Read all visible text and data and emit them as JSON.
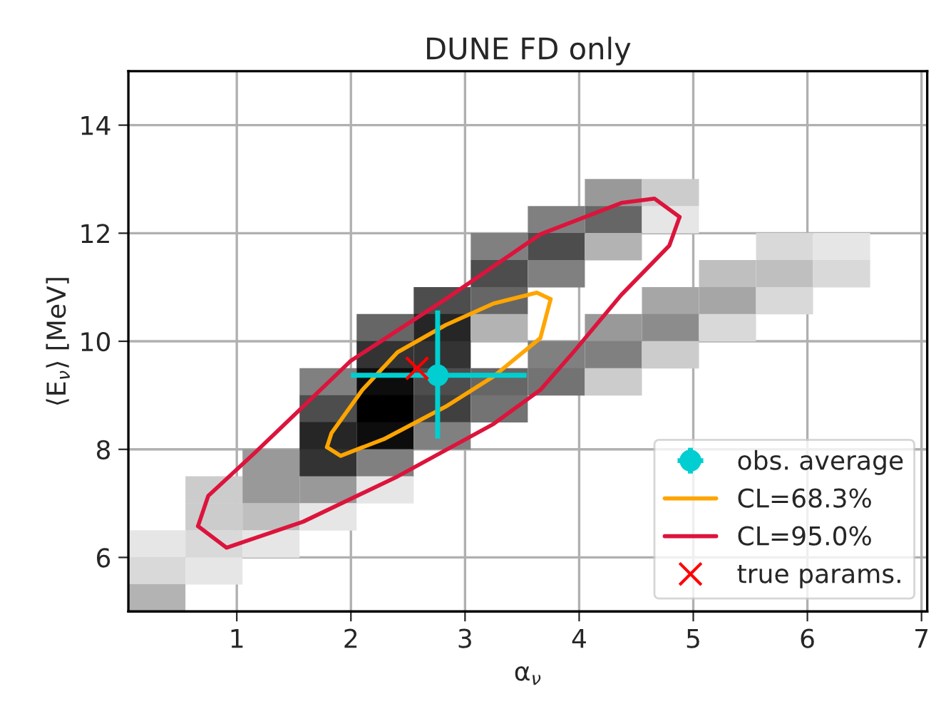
{
  "chart_data": {
    "type": "scatter",
    "title": "DUNE FD only",
    "xlabel": "α$_{ν}$",
    "ylabel": "⟨E$_{ν}$⟩ [MeV]",
    "xlim": [
      0.05,
      7.05
    ],
    "ylim": [
      5,
      15
    ],
    "xticks": [
      1,
      2,
      3,
      4,
      5,
      6,
      7
    ],
    "yticks": [
      6,
      8,
      10,
      12,
      14
    ],
    "grid": true,
    "legend": "bottom right",
    "series": [
      {
        "marker": "square",
        "x": [
          4.3,
          4.8,
          3.8,
          4.3,
          4.8,
          3.3,
          3.8,
          4.3,
          5.8,
          6.3,
          3.3,
          3.8,
          5.3,
          5.8,
          6.3,
          2.8,
          3.3,
          4.8,
          5.3,
          5.8,
          2.3,
          2.8,
          3.3,
          4.3,
          4.8,
          5.3,
          2.3,
          2.8,
          3.8,
          4.3,
          4.8,
          1.8,
          2.3,
          2.8,
          3.3,
          3.8,
          4.3,
          1.8,
          2.3,
          2.8,
          3.3,
          1.8,
          2.3,
          2.8,
          1.3,
          1.8,
          2.3,
          0.8,
          1.3,
          1.8,
          2.3,
          0.8,
          1.3,
          1.8,
          0.3,
          0.8,
          1.3,
          0.3,
          0.8,
          0.3
        ],
        "values": [
          12.75,
          12.75,
          12.25,
          12.25,
          12.25,
          11.75,
          11.75,
          11.75,
          11.75,
          11.75,
          11.25,
          11.25,
          11.25,
          11.25,
          11.25,
          10.75,
          10.75,
          10.75,
          10.75,
          10.75,
          10.25,
          10.25,
          10.25,
          10.25,
          10.25,
          10.25,
          9.75,
          9.75,
          9.75,
          9.75,
          9.75,
          9.25,
          9.25,
          9.25,
          9.25,
          9.25,
          9.25,
          8.75,
          8.75,
          8.75,
          8.75,
          8.25,
          8.25,
          8.25,
          7.75,
          7.75,
          7.75,
          7.25,
          7.25,
          7.25,
          7.25,
          6.75,
          6.75,
          6.75,
          6.25,
          6.25,
          6.25,
          5.75,
          5.75,
          5.25
        ],
        "colors": [
          "#999999",
          "#cccccc",
          "#808080",
          "#666666",
          "#e6e6e6",
          "#808080",
          "#4d4d4d",
          "#b3b3b3",
          "#d9d9d9",
          "#e6e6e6",
          "#4d4d4d",
          "#808080",
          "#bfbfbf",
          "#bfbfbf",
          "#d9d9d9",
          "#4d4d4d",
          "#666666",
          "#a6a6a6",
          "#a6a6a6",
          "#d9d9d9",
          "#666666",
          "#262626",
          "#b3b3b3",
          "#999999",
          "#8c8c8c",
          "#d9d9d9",
          "#333333",
          "#333333",
          "#808080",
          "#808080",
          "#cccccc",
          "#808080",
          "#0d0d0d",
          "#4d4d4d",
          "#666666",
          "#737373",
          "#cccccc",
          "#4d4d4d",
          "#000000",
          "#404040",
          "#737373",
          "#262626",
          "#0d0d0d",
          "#808080",
          "#999999",
          "#333333",
          "#808080",
          "#cccccc",
          "#999999",
          "#999999",
          "#e6e6e6",
          "#cccccc",
          "#bfbfbf",
          "#e6e6e6",
          "#e6e6e6",
          "#d9d9d9",
          "#e6e6e6",
          "#d9d9d9",
          "#e6e6e6",
          "#b3b3b3"
        ]
      },
      {
        "type": "scatter",
        "name": "obs. average",
        "color": "#00ced1",
        "marker": "circle",
        "x": [
          2.76
        ],
        "values": [
          9.37
        ],
        "errors": [
          [
            8.2,
            10.57
          ]
        ],
        "xerrors": [
          [
            2.0,
            3.54
          ]
        ]
      },
      {
        "type": "line",
        "name": "CL=68.3%",
        "color": "#ffa500",
        "x": [
          1.79,
          1.91,
          2.3,
          2.83,
          3.25,
          3.66,
          3.75
        ],
        "values": [
          8.04,
          7.88,
          8.2,
          8.79,
          9.35,
          10.06,
          10.78
        ]
      },
      {
        "type": "line",
        "color": "#ffa500",
        "x": [
          3.75,
          3.63,
          3.25,
          2.83,
          2.41,
          2.1,
          1.83,
          1.79
        ],
        "values": [
          10.78,
          10.9,
          10.7,
          10.3,
          9.8,
          9.1,
          8.3,
          8.04
        ]
      },
      {
        "type": "line",
        "name": "CL=95.0%",
        "color": "#dc143c",
        "x": [
          0.66,
          0.91,
          1.58,
          2.41,
          3.25,
          3.66,
          3.95,
          4.37,
          4.79,
          4.88
        ],
        "values": [
          6.58,
          6.18,
          6.66,
          7.5,
          8.47,
          9.1,
          9.8,
          10.86,
          11.77,
          12.3
        ]
      },
      {
        "type": "line",
        "color": "#dc143c",
        "x": [
          4.88,
          4.66,
          4.37,
          3.66,
          2.83,
          2.0,
          1.16,
          0.75,
          0.66
        ],
        "values": [
          12.3,
          12.64,
          12.56,
          11.98,
          10.78,
          9.64,
          7.94,
          7.14,
          6.58
        ]
      },
      {
        "type": "scatter",
        "name": "true params.",
        "color": "#ff0000",
        "marker": "cross",
        "x": [
          2.58
        ],
        "values": [
          9.5
        ]
      }
    ]
  }
}
